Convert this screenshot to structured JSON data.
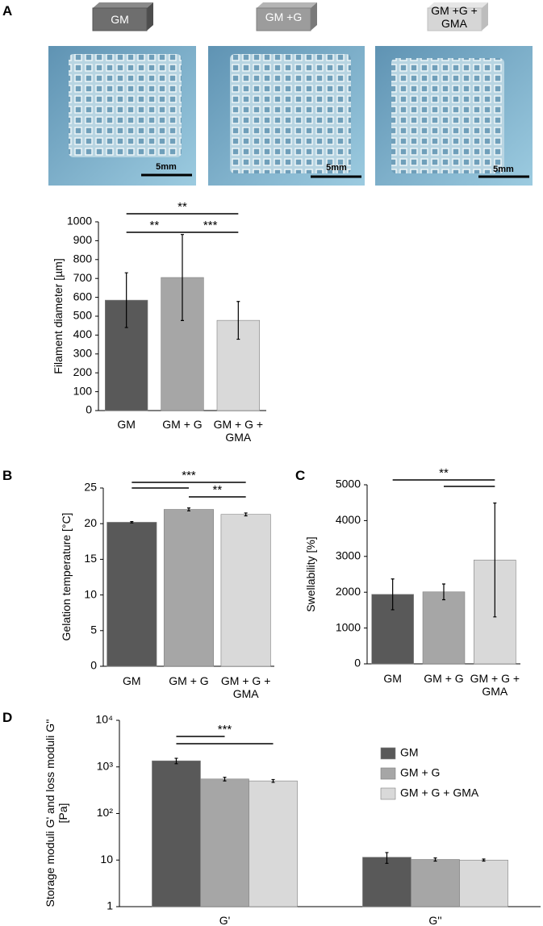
{
  "panel_labels": [
    "A",
    "B",
    "C",
    "D"
  ],
  "constructs": [
    "GM",
    "GM +G",
    "GM +G + GMA"
  ],
  "scale_bar": "5mm",
  "chart_data": [
    {
      "type": "bar",
      "y_label": "Filament diameter [µm]",
      "categories": [
        "GM",
        "GM + G",
        "GM + G + GMA"
      ],
      "values": [
        585,
        705,
        478
      ],
      "errors": [
        145,
        228,
        100
      ],
      "colors": [
        "#595959",
        "#a6a6a6",
        "#d9d9d9"
      ],
      "ylim": [
        0,
        1000
      ],
      "yticks": [
        0,
        100,
        200,
        300,
        400,
        500,
        600,
        700,
        800,
        900,
        1000
      ],
      "significance": [
        {
          "label": "**",
          "pairs": [
            [
              0,
              2
            ]
          ]
        },
        {
          "label": "**",
          "pairs": [
            [
              0,
              1
            ]
          ]
        },
        {
          "label": "***",
          "pairs": [
            [
              1,
              2
            ]
          ]
        }
      ]
    },
    {
      "type": "bar",
      "y_label": "Gelation temperature [°C]",
      "categories": [
        "GM",
        "GM + G",
        "GM + G + GMA"
      ],
      "values": [
        20.2,
        22.0,
        21.3
      ],
      "errors": [
        0.1,
        0.2,
        0.2
      ],
      "colors": [
        "#595959",
        "#a6a6a6",
        "#d9d9d9"
      ],
      "ylim": [
        0,
        25
      ],
      "yticks": [
        0,
        5,
        10,
        15,
        20,
        25
      ],
      "significance": [
        {
          "label": "***",
          "pairs": [
            [
              0,
              2
            ],
            [
              0,
              1
            ]
          ]
        },
        {
          "label": "**",
          "pairs": [
            [
              1,
              2
            ]
          ]
        }
      ]
    },
    {
      "type": "bar",
      "y_label": "Swellability [%]",
      "categories": [
        "GM",
        "GM + G",
        "GM + G + GMA"
      ],
      "values": [
        1940,
        2010,
        2900
      ],
      "errors": [
        430,
        220,
        1590
      ],
      "colors": [
        "#595959",
        "#a6a6a6",
        "#d9d9d9"
      ],
      "ylim": [
        0,
        5000
      ],
      "yticks": [
        0,
        1000,
        2000,
        3000,
        4000,
        5000
      ],
      "significance": [
        {
          "label": "**",
          "pairs": [
            [
              0,
              2
            ],
            [
              1,
              2
            ]
          ]
        }
      ]
    },
    {
      "type": "bar",
      "y_label": "Storage moduli G' and loss moduli G'' [Pa]",
      "categories": [
        "G'",
        "G''"
      ],
      "log_scale": true,
      "legend": "right",
      "series": [
        {
          "name": "GM",
          "color": "#595959",
          "values": [
            1350,
            11.5
          ],
          "errors": [
            180,
            3
          ]
        },
        {
          "name": "GM + G",
          "color": "#a6a6a6",
          "values": [
            550,
            10.3
          ],
          "errors": [
            50,
            0.8
          ]
        },
        {
          "name": "GM + G + GMA",
          "color": "#d9d9d9",
          "values": [
            500,
            10.0
          ],
          "errors": [
            35,
            0.5
          ]
        }
      ],
      "ylim": [
        1,
        10000
      ],
      "yticks": [
        1,
        10,
        {
          "value": 100,
          "label": "10²"
        },
        {
          "value": 1000,
          "label": "10³"
        },
        {
          "value": 10000,
          "label": "10⁴"
        }
      ],
      "significance": [
        {
          "label": "***",
          "category": 0,
          "pairs": [
            [
              0,
              1
            ],
            [
              0,
              2
            ]
          ]
        }
      ]
    }
  ]
}
